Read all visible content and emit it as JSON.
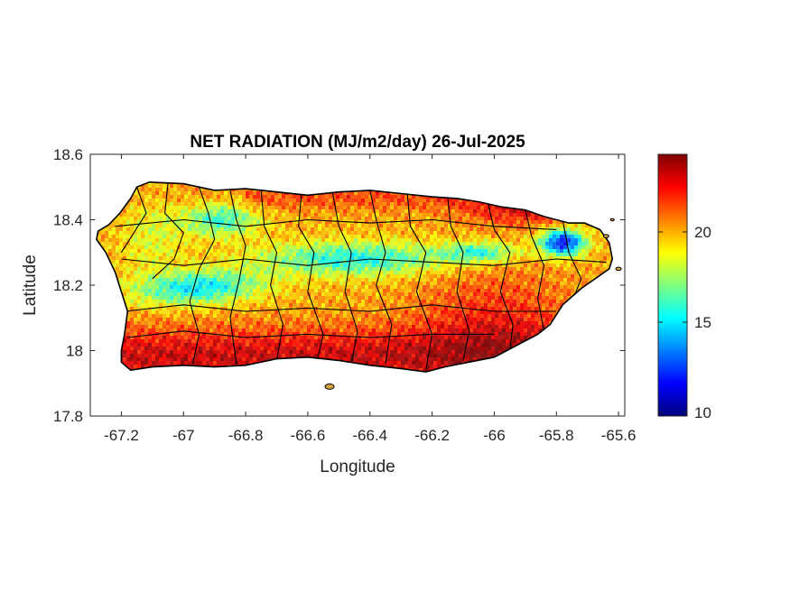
{
  "chart_data": {
    "type": "heatmap",
    "title": "NET RADIATION (MJ/m2/day) 26-Jul-2025",
    "xlabel": "Longitude",
    "ylabel": "Latitude",
    "xlim": [
      -67.3,
      -65.58
    ],
    "ylim": [
      17.8,
      18.6
    ],
    "xticks": [
      -67.2,
      -67,
      -66.8,
      -66.6,
      -66.4,
      -66.2,
      -66,
      -65.8,
      -65.6
    ],
    "xtick_labels": [
      "-67.2",
      "-67",
      "-66.8",
      "-66.6",
      "-66.4",
      "-66.2",
      "-66",
      "-65.8",
      "-65.6"
    ],
    "yticks": [
      17.8,
      18,
      18.2,
      18.4,
      18.6
    ],
    "ytick_labels": [
      "17.8",
      "18",
      "18.2",
      "18.4",
      "18.6"
    ],
    "colorbar": {
      "colormap": "jet",
      "range": [
        9.8,
        24.3
      ],
      "ticks": [
        10,
        15,
        20
      ],
      "tick_labels": [
        "10",
        "15",
        "20"
      ]
    },
    "grid": false,
    "colors": {
      "land_outline": "#000000",
      "axis": "#262626",
      "jet_stops": [
        "#00007f",
        "#0000ff",
        "#007fff",
        "#00ffff",
        "#7fff7f",
        "#ffff00",
        "#ff7f00",
        "#ff0000",
        "#7f0000"
      ]
    }
  }
}
